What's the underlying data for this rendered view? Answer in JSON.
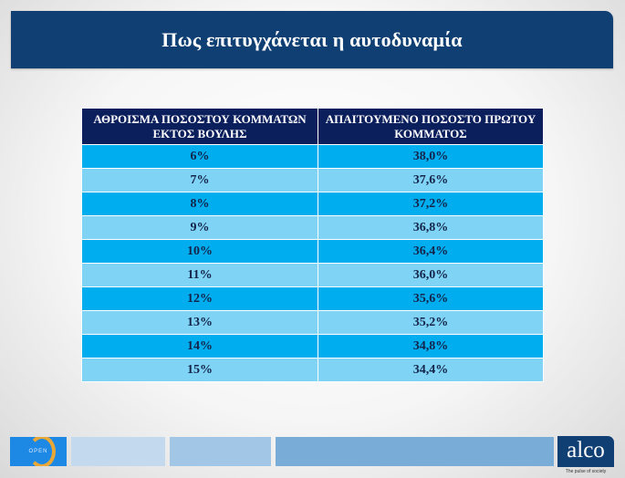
{
  "title": "Πως επιτυγχάνεται η αυτοδυναμία",
  "table": {
    "headers": [
      "ΑΘΡΟΙΣΜΑ ΠΟΣΟΣΤΟΥ ΚΟΜΜΑΤΩΝ ΕΚΤΟΣ ΒΟΥΛΗΣ",
      "ΑΠΑΙΤΟΥΜΕΝΟ ΠΟΣΟΣΤΟ ΠΡΩΤΟΥ ΚΟΜΜΑΤΟΣ"
    ],
    "rows": [
      [
        "6%",
        "38,0%"
      ],
      [
        "7%",
        "37,6%"
      ],
      [
        "8%",
        "37,2%"
      ],
      [
        "9%",
        "36,8%"
      ],
      [
        "10%",
        "36,4%"
      ],
      [
        "11%",
        "36,0%"
      ],
      [
        "12%",
        "35,6%"
      ],
      [
        "13%",
        "35,2%"
      ],
      [
        "14%",
        "34,8%"
      ],
      [
        "15%",
        "34,4%"
      ]
    ]
  },
  "footer": {
    "left_logo": "OPEN",
    "right_logo": "alco",
    "tagline": "The pulse of society"
  },
  "colors": {
    "title_bg": "#0f3f73",
    "header_bg": "#0b1f5c",
    "row_dark": "#00adef",
    "row_light": "#7fd4f5",
    "cell_text": "#14244a"
  }
}
